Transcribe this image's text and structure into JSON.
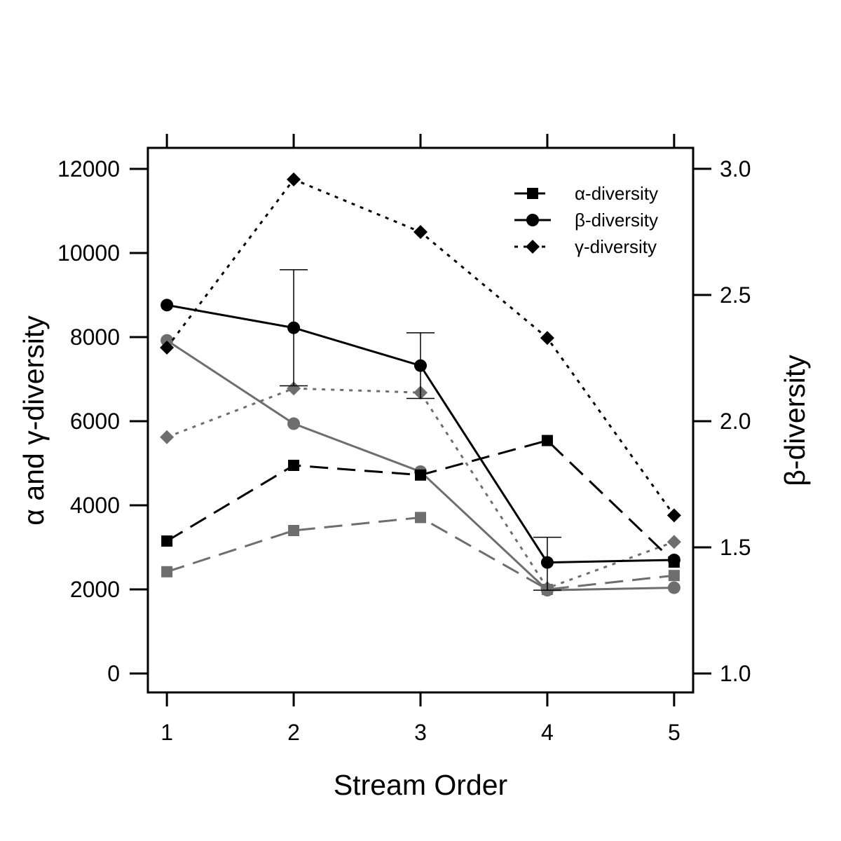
{
  "chart_data": {
    "type": "line",
    "xlabel": "Stream Order",
    "ylabel_left": "α and γ-diversity",
    "ylabel_right": "β-diversity",
    "x": [
      1,
      2,
      3,
      4,
      5
    ],
    "xlim": [
      0.85,
      5.15
    ],
    "ylim_left": [
      -450,
      12500
    ],
    "ylim_right": [
      0.925,
      3.083
    ],
    "yticks_left": [
      0,
      2000,
      4000,
      6000,
      8000,
      10000,
      12000
    ],
    "yticks_right": [
      "1.0",
      "1.5",
      "2.0",
      "2.5",
      "3.0"
    ],
    "grid": false,
    "legend_position": "top-right",
    "legend": [
      {
        "label": "α-diversity",
        "marker": "square",
        "dash": "long-dash"
      },
      {
        "label": "β-diversity",
        "marker": "circle",
        "dash": "solid"
      },
      {
        "label": "γ-diversity",
        "marker": "diamond",
        "dash": "dotted"
      }
    ],
    "colors": {
      "black": "#000000",
      "gray": "#6e6e6e"
    },
    "series": [
      {
        "group": "black",
        "metric": "alpha",
        "axis": "left",
        "values": [
          3150,
          4950,
          4720,
          5540,
          2650
        ]
      },
      {
        "group": "black",
        "metric": "beta",
        "axis": "right",
        "values": [
          2.46,
          2.37,
          2.22,
          1.44,
          1.45
        ],
        "error_upper": [
          null,
          2.6,
          2.35,
          1.54,
          null
        ],
        "error_lower": [
          null,
          2.14,
          2.09,
          1.33,
          null
        ]
      },
      {
        "group": "black",
        "metric": "gamma",
        "axis": "left",
        "values": [
          7750,
          11750,
          10500,
          7980,
          3760
        ]
      },
      {
        "group": "gray",
        "metric": "alpha",
        "axis": "left",
        "values": [
          2420,
          3400,
          3710,
          2000,
          2330
        ]
      },
      {
        "group": "gray",
        "metric": "beta",
        "axis": "right",
        "values": [
          2.32,
          1.99,
          1.8,
          1.33,
          1.34
        ],
        "error_upper": [
          null,
          null,
          null,
          null,
          null
        ],
        "error_lower": [
          null,
          null,
          null,
          null,
          null
        ]
      },
      {
        "group": "gray",
        "metric": "gamma",
        "axis": "left",
        "values": [
          5620,
          6780,
          6680,
          2030,
          3130
        ]
      }
    ]
  }
}
